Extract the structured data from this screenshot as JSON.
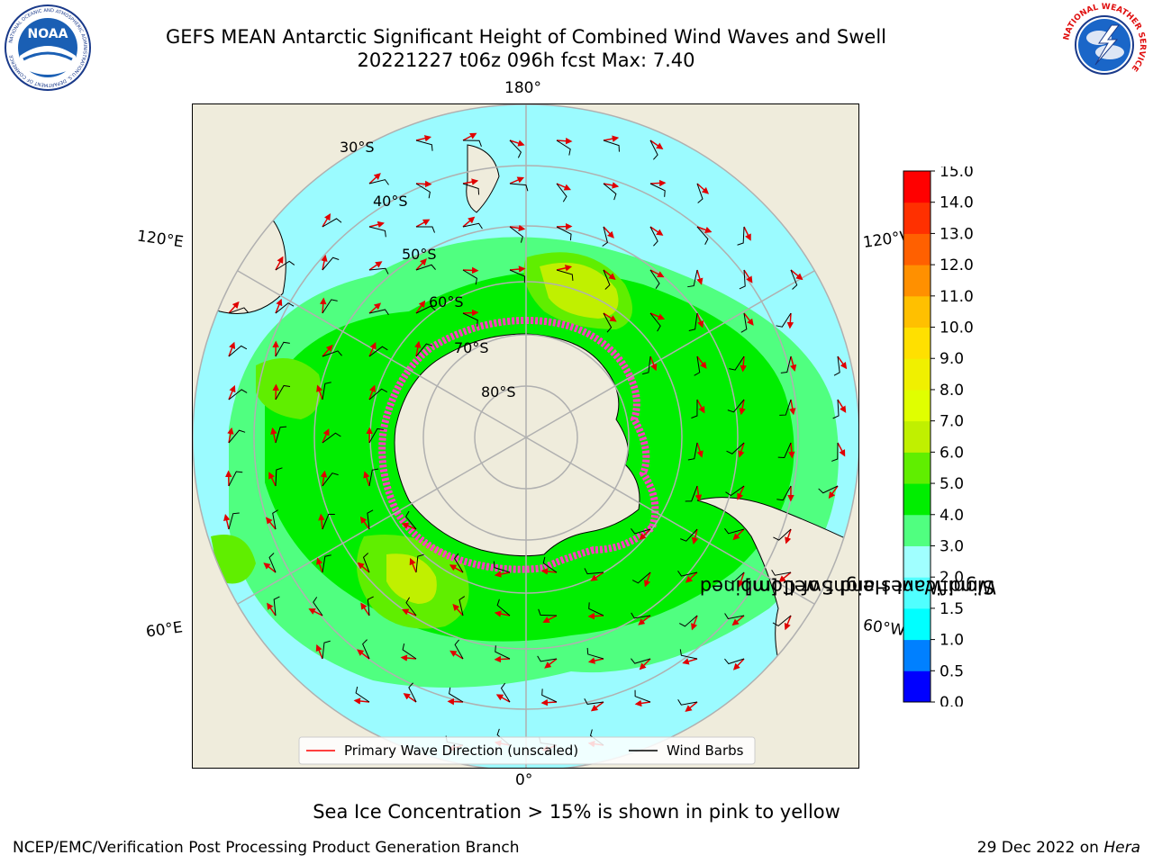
{
  "header": {
    "title_line1": "GEFS MEAN Antarctic Significant Height of Combined Wind Waves and Swell",
    "title_line2": "20221227 t06z 096h fcst   Max: 7.40"
  },
  "logos": {
    "noaa": {
      "center_text": "NOAA",
      "ring_top": "NATIONAL OCEANIC AND ATMOSPHERIC ADMINISTRATION",
      "ring_bottom": "U.S. DEPARTMENT OF COMMERCE"
    },
    "nws": {
      "ring_text": "NATIONAL WEATHER SERVICE"
    }
  },
  "map": {
    "projection": "south-polar-stereographic",
    "longitude_labels": {
      "top": "180°",
      "bottom": "0°",
      "upper_left": "120°E",
      "lower_left": "60°E",
      "upper_right": "120°W",
      "lower_right": "60°W"
    },
    "latitude_labels": [
      "30°S",
      "40°S",
      "50°S",
      "60°S",
      "70°S",
      "80°S"
    ],
    "legend": {
      "wave_label": "Primary Wave Direction (unscaled)",
      "barb_label": "Wind Barbs",
      "wave_color": "#ff0000",
      "barb_color": "#000000"
    },
    "colors": {
      "land": "#efecdc",
      "ocean_low": "#9bfbff",
      "grid": "#b0b0b0"
    }
  },
  "colorbar": {
    "title_line1": "Significant Height of Combined",
    "title_line2": "Wind Waves and Swell [m]",
    "levels": [
      0.0,
      0.5,
      1.0,
      1.5,
      2.0,
      3.0,
      4.0,
      5.0,
      6.0,
      7.0,
      8.0,
      9.0,
      10.0,
      11.0,
      12.0,
      13.0,
      14.0,
      15.0
    ],
    "tick_labels": [
      "0.0",
      "0.5",
      "1.0",
      "1.5",
      "2.0",
      "3.0",
      "4.0",
      "5.0",
      "6.0",
      "7.0",
      "8.0",
      "9.0",
      "10.0",
      "11.0",
      "12.0",
      "13.0",
      "14.0",
      "15.0"
    ],
    "colors": [
      "#0000ff",
      "#0080ff",
      "#00ffff",
      "#50ffff",
      "#a0ffff",
      "#50ff80",
      "#00ee00",
      "#60ee00",
      "#c0f000",
      "#e0ff00",
      "#f0f000",
      "#ffe000",
      "#ffc000",
      "#ff9000",
      "#ff6000",
      "#ff3000",
      "#ff0000"
    ]
  },
  "footnote": "Sea Ice Concentration > 15% is shown in pink to yellow",
  "credit": "NCEP/EMC/Verification Post Processing Product Generation Branch",
  "date_text": "29 Dec 2022 on ",
  "date_host": "Hera"
}
